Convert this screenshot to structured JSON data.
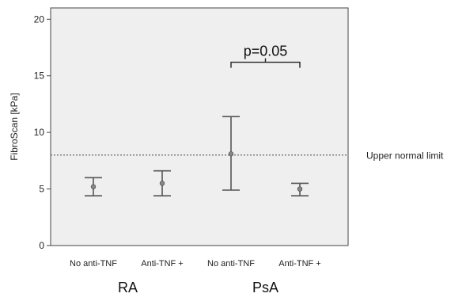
{
  "chart_data": {
    "type": "errorbar",
    "title": "",
    "ylabel": "FibroScan [kPa]",
    "ylim": [
      0,
      21
    ],
    "yticks": [
      0,
      5,
      10,
      15,
      20
    ],
    "grid": false,
    "categories": [
      "No anti-TNF",
      "Anti-TNF +",
      "No anti-TNF",
      "Anti-TNF +"
    ],
    "groups": [
      {
        "label": "RA",
        "categories": [
          0,
          1
        ]
      },
      {
        "label": "PsA",
        "categories": [
          2,
          3
        ]
      }
    ],
    "points": [
      {
        "mean": 5.2,
        "lower": 4.4,
        "upper": 6.0
      },
      {
        "mean": 5.5,
        "lower": 4.4,
        "upper": 6.6
      },
      {
        "mean": 8.1,
        "lower": 4.9,
        "upper": 11.4
      },
      {
        "mean": 5.0,
        "lower": 4.4,
        "upper": 5.5
      }
    ],
    "reference_line": {
      "value": 8.0,
      "label": "Upper normal limit",
      "style": "dotted"
    },
    "significance": {
      "label": "p=0.05",
      "between": [
        2,
        3
      ],
      "at": 16.2
    },
    "colors": {
      "panel": "#efefef",
      "line": "#555555",
      "marker": "#888888"
    }
  }
}
